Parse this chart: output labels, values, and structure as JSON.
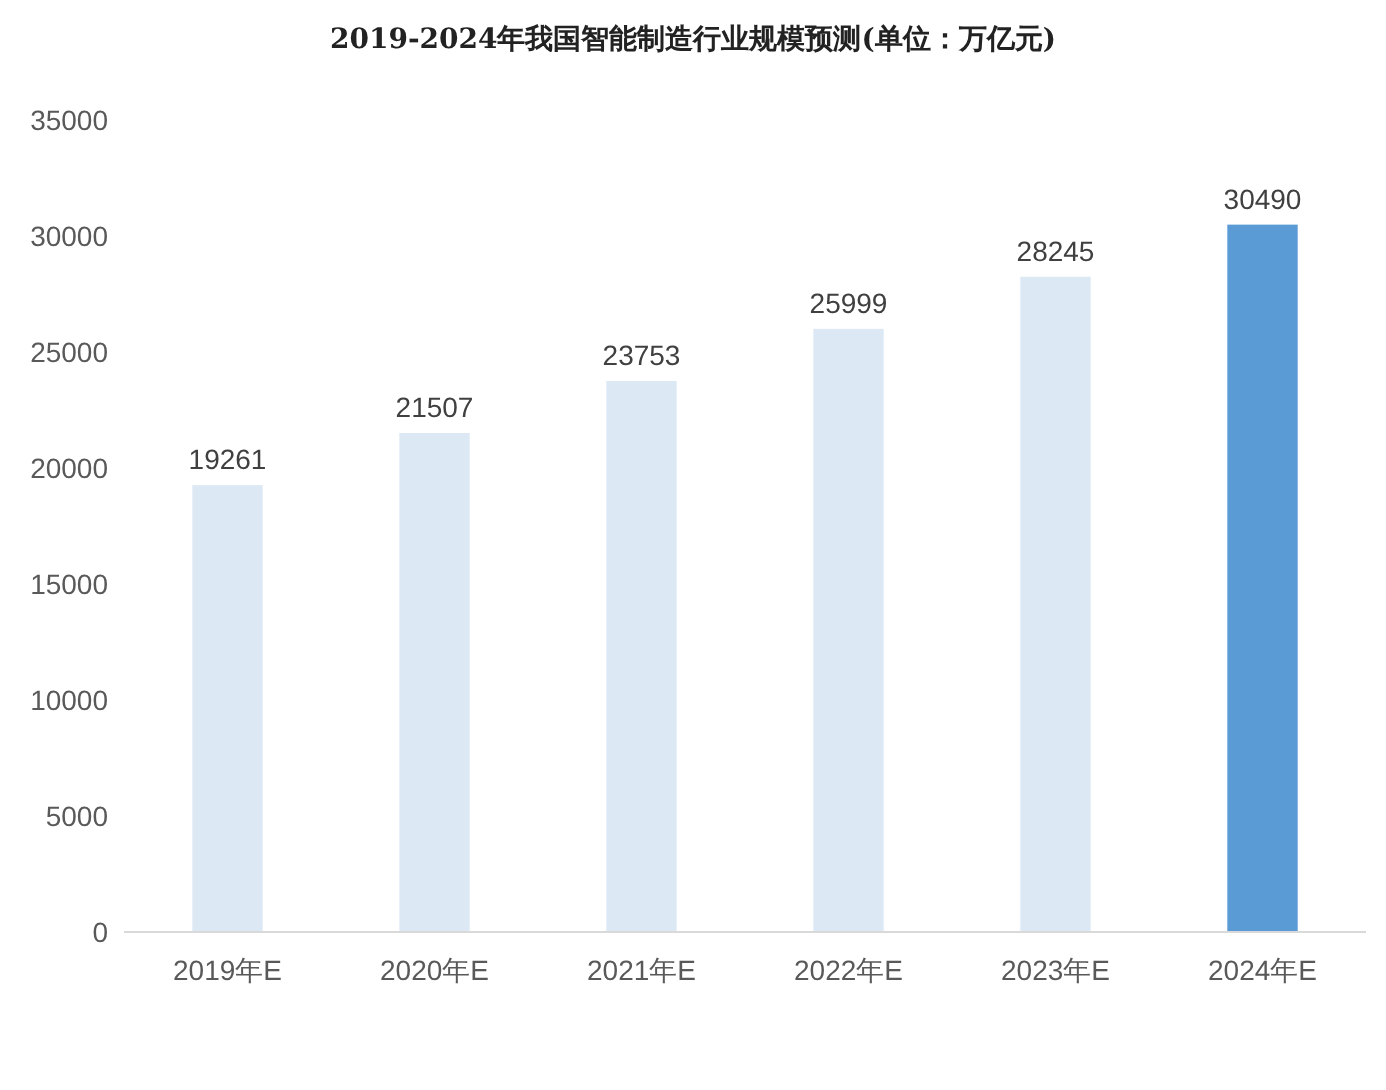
{
  "chart_data": {
    "type": "bar",
    "title": "2019-2024年我国智能制造行业规模预测(单位：万亿元)",
    "categories": [
      "2019年E",
      "2020年E",
      "2021年E",
      "2022年E",
      "2023年E",
      "2024年E"
    ],
    "values": [
      19261,
      21507,
      23753,
      25999,
      28245,
      30490
    ],
    "colors": [
      "#dde8f5",
      "#dde8f5",
      "#dde8f5",
      "#dde8f5",
      "#dde8f5",
      "#5b9bd5"
    ],
    "ylim": [
      0,
      35000
    ],
    "yticks": [
      0,
      5000,
      10000,
      15000,
      20000,
      25000,
      30000,
      35000
    ],
    "data_labels": true,
    "grid": false
  }
}
